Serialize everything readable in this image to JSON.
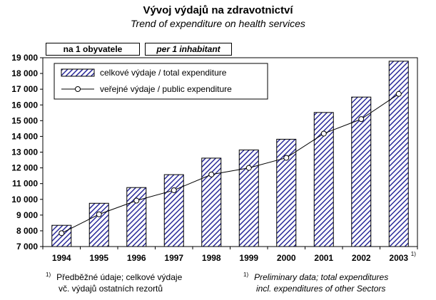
{
  "title_cz": "Vývoj výdajů na zdravotnictví",
  "title_en": "Trend of expenditure on health services",
  "unit_cz": "na 1 obyvatele",
  "unit_en": "per 1 inhabitant",
  "footnote_marker": "1)",
  "note_cz": {
    "line1": "Předběžné údaje; celkové výdaje",
    "line2": "vč. výdajů ostatních rezortů"
  },
  "note_en": {
    "line1": "Preliminary data; total expenditures",
    "line2": "incl. expenditures of other Sectors"
  },
  "chart_data": {
    "type": "bar",
    "categories": [
      "1994",
      "1995",
      "1996",
      "1997",
      "1998",
      "1999",
      "2000",
      "2001",
      "2002",
      "2003"
    ],
    "category_footnotes": {
      "2003": "1)"
    },
    "series": [
      {
        "name": "celkové výdaje / total expenditure",
        "type": "bar",
        "values": [
          8350,
          9750,
          10750,
          11570,
          12620,
          13140,
          13820,
          15520,
          16500,
          18780
        ],
        "color": "#2b2b9a",
        "pattern": "diagonal-hatch"
      },
      {
        "name": "veřejné výdaje / public expenditure",
        "type": "line",
        "values": [
          7850,
          9050,
          9920,
          10580,
          11580,
          12000,
          12640,
          14180,
          15100,
          16700
        ],
        "color": "#000000",
        "marker": "open-circle"
      }
    ],
    "ylim": [
      7000,
      19000
    ],
    "yticks": [
      "7 000",
      "8 000",
      "9 000",
      "10 000",
      "11 000",
      "12 000",
      "13 000",
      "14 000",
      "15 000",
      "16 000",
      "17 000",
      "18 000",
      "19 000"
    ],
    "xlabel": "",
    "ylabel": "",
    "grid": false,
    "legend": "top-left"
  }
}
